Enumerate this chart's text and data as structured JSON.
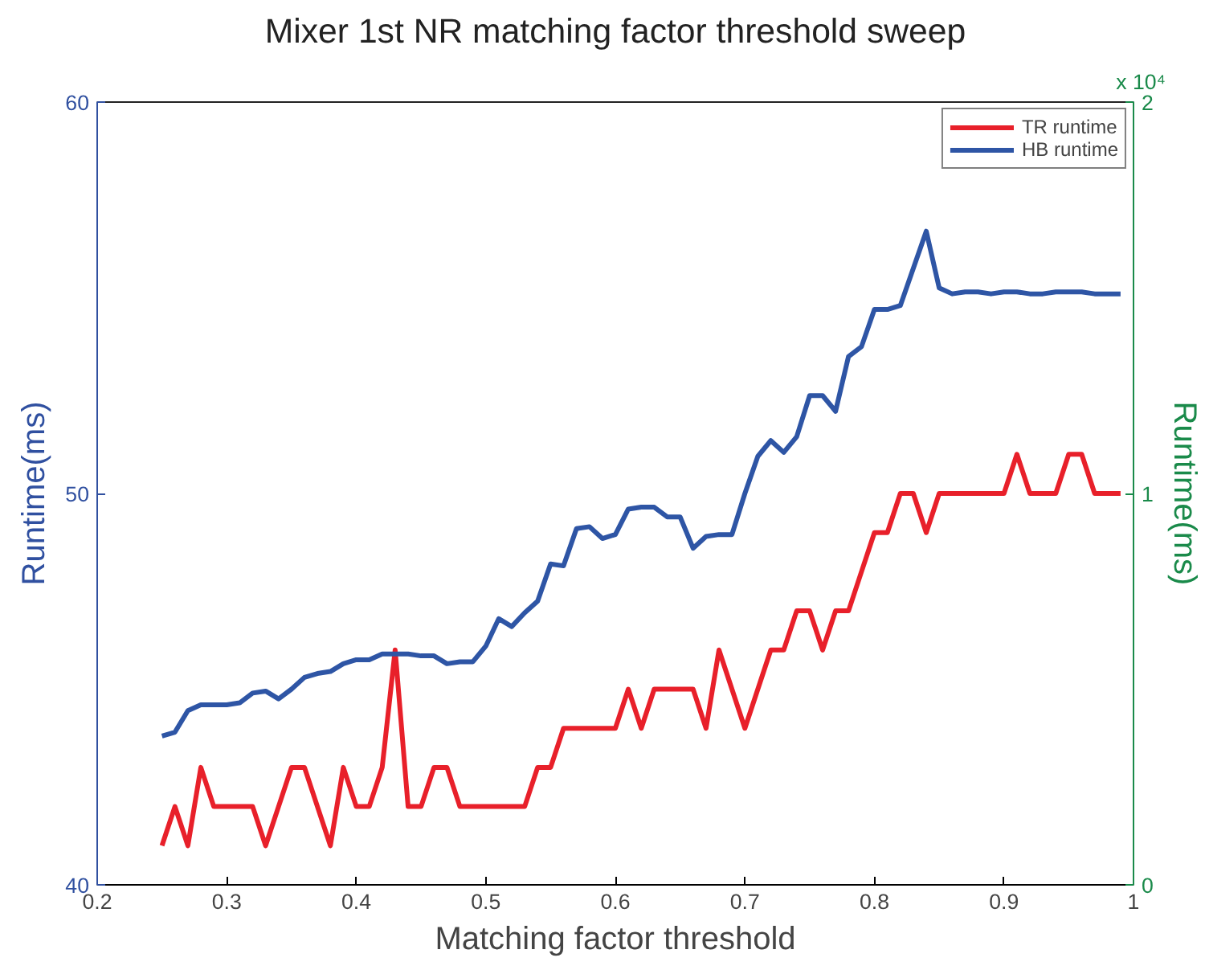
{
  "chart_data": {
    "type": "line",
    "title": "Mixer 1st NR matching factor threshold sweep",
    "xlabel": "Matching factor threshold",
    "ylabel": "Runtime(ms)",
    "y2label": "Runtime(ms)",
    "x": [
      0.25,
      0.26,
      0.27,
      0.28,
      0.29,
      0.3,
      0.31,
      0.32,
      0.33,
      0.34,
      0.35,
      0.36,
      0.37,
      0.38,
      0.39,
      0.4,
      0.41,
      0.42,
      0.43,
      0.44,
      0.45,
      0.46,
      0.47,
      0.48,
      0.49,
      0.5,
      0.51,
      0.52,
      0.53,
      0.54,
      0.55,
      0.56,
      0.57,
      0.58,
      0.59,
      0.6,
      0.61,
      0.62,
      0.63,
      0.64,
      0.65,
      0.66,
      0.67,
      0.68,
      0.69,
      0.7,
      0.71,
      0.72,
      0.73,
      0.74,
      0.75,
      0.76,
      0.77,
      0.78,
      0.79,
      0.8,
      0.81,
      0.82,
      0.83,
      0.84,
      0.85,
      0.86,
      0.87,
      0.88,
      0.89,
      0.9,
      0.91,
      0.92,
      0.93,
      0.94,
      0.95,
      0.96,
      0.97,
      0.98,
      0.99
    ],
    "series": [
      {
        "name": "TR runtime",
        "color": "#e8202a",
        "values": [
          41,
          42,
          41,
          43,
          42,
          42,
          42,
          42,
          41,
          42,
          43,
          43,
          42,
          41,
          43,
          42,
          42,
          43,
          46,
          42,
          42,
          43,
          43,
          42,
          42,
          42,
          42,
          42,
          42,
          43,
          43,
          44,
          44,
          44,
          44,
          44,
          45,
          44,
          45,
          45,
          45,
          45,
          44,
          46,
          45,
          44,
          45,
          46,
          46,
          47,
          47,
          46,
          47,
          47,
          48,
          49,
          49,
          50,
          50,
          49,
          50,
          50,
          50,
          50,
          50,
          50,
          51,
          50,
          50,
          50,
          51,
          51,
          50,
          50,
          50
        ]
      },
      {
        "name": "HB runtime",
        "color": "#2e55a5",
        "values": [
          43.8,
          43.9,
          44.45,
          44.6,
          44.6,
          44.6,
          44.65,
          44.9,
          44.95,
          44.75,
          45.0,
          45.3,
          45.4,
          45.45,
          45.65,
          45.75,
          45.75,
          45.9,
          45.9,
          45.9,
          45.85,
          45.85,
          45.65,
          45.7,
          45.7,
          46.1,
          46.8,
          46.6,
          46.95,
          47.25,
          48.2,
          48.15,
          49.1,
          49.15,
          48.85,
          48.95,
          49.6,
          49.65,
          49.65,
          49.4,
          49.4,
          48.6,
          48.9,
          48.95,
          48.95,
          50.0,
          50.95,
          51.35,
          51.05,
          51.45,
          52.5,
          52.5,
          52.1,
          53.5,
          53.75,
          54.7,
          54.7,
          54.8,
          55.75,
          56.7,
          55.25,
          55.1,
          55.15,
          55.15,
          55.1,
          55.15,
          55.15,
          55.1,
          55.1,
          55.15,
          55.15,
          55.15,
          55.1,
          55.1,
          55.1
        ]
      }
    ],
    "xlim": [
      0.2,
      1.0
    ],
    "xticks": [
      0.2,
      0.3,
      0.4,
      0.5,
      0.6,
      0.7,
      0.8,
      0.9,
      {
        "value": 1.0,
        "label": "1"
      }
    ],
    "ylim": [
      40,
      60
    ],
    "yticks": [
      40,
      50,
      60
    ],
    "y2lim": [
      0,
      2
    ],
    "y2ticks": [
      0,
      1,
      2
    ],
    "annotations": [
      "x 10⁴"
    ],
    "grid": false,
    "legend": "top right",
    "line_style": "solid",
    "marker": "none"
  }
}
